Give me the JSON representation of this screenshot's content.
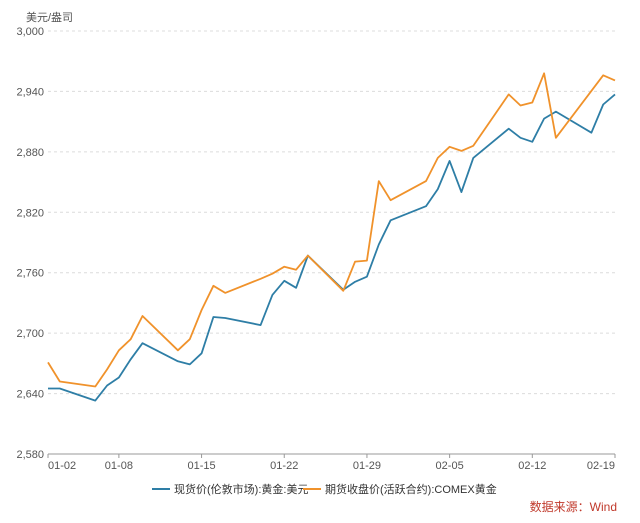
{
  "chart_data": {
    "type": "line",
    "y_unit": "美元/盎司",
    "ylim": [
      2580,
      3000
    ],
    "yticks": [
      "2,580",
      "2,640",
      "2,700",
      "2,760",
      "2,820",
      "2,880",
      "2,940",
      "3,000"
    ],
    "ytick_values": [
      2580,
      2640,
      2700,
      2760,
      2820,
      2880,
      2940,
      3000
    ],
    "xlim": [
      "2025-01-02",
      "2025-02-19"
    ],
    "xticks": [
      "01-02",
      "01-08",
      "01-15",
      "01-22",
      "01-29",
      "02-05",
      "02-12",
      "02-19"
    ],
    "xtick_dates": [
      "2025-01-02",
      "2025-01-08",
      "2025-01-15",
      "2025-01-22",
      "2025-01-29",
      "2025-02-05",
      "2025-02-12",
      "2025-02-19"
    ],
    "grid": "horizontal dashed",
    "legend_position": "bottom",
    "series": [
      {
        "name": "现货价(伦敦市场):黄金:美元",
        "color": "#2e7ea6",
        "points": [
          [
            "2025-01-02",
            2645
          ],
          [
            "2025-01-03",
            2645
          ],
          [
            "2025-01-06",
            2633
          ],
          [
            "2025-01-07",
            2648
          ],
          [
            "2025-01-08",
            2656
          ],
          [
            "2025-01-09",
            2674
          ],
          [
            "2025-01-10",
            2690
          ],
          [
            "2025-01-13",
            2672
          ],
          [
            "2025-01-14",
            2669
          ],
          [
            "2025-01-15",
            2680
          ],
          [
            "2025-01-16",
            2716
          ],
          [
            "2025-01-17",
            2715
          ],
          [
            "2025-01-20",
            2708
          ],
          [
            "2025-01-21",
            2738
          ],
          [
            "2025-01-22",
            2752
          ],
          [
            "2025-01-23",
            2745
          ],
          [
            "2025-01-24",
            2777
          ],
          [
            "2025-01-27",
            2743
          ],
          [
            "2025-01-28",
            2751
          ],
          [
            "2025-01-29",
            2756
          ],
          [
            "2025-01-30",
            2788
          ],
          [
            "2025-01-31",
            2812
          ],
          [
            "2025-02-03",
            2826
          ],
          [
            "2025-02-04",
            2843
          ],
          [
            "2025-02-05",
            2871
          ],
          [
            "2025-02-06",
            2840
          ],
          [
            "2025-02-07",
            2874
          ],
          [
            "2025-02-10",
            2903
          ],
          [
            "2025-02-11",
            2894
          ],
          [
            "2025-02-12",
            2890
          ],
          [
            "2025-02-13",
            2913
          ],
          [
            "2025-02-14",
            2920
          ],
          [
            "2025-02-17",
            2899
          ],
          [
            "2025-02-18",
            2927
          ],
          [
            "2025-02-19",
            2937
          ]
        ]
      },
      {
        "name": "期货收盘价(活跃合约):COMEX黄金",
        "color": "#f0922b",
        "points": [
          [
            "2025-01-02",
            2671
          ],
          [
            "2025-01-03",
            2652
          ],
          [
            "2025-01-06",
            2647
          ],
          [
            "2025-01-07",
            2664
          ],
          [
            "2025-01-08",
            2683
          ],
          [
            "2025-01-09",
            2694
          ],
          [
            "2025-01-10",
            2717
          ],
          [
            "2025-01-13",
            2683
          ],
          [
            "2025-01-14",
            2694
          ],
          [
            "2025-01-15",
            2723
          ],
          [
            "2025-01-16",
            2747
          ],
          [
            "2025-01-17",
            2740
          ],
          [
            "2025-01-20",
            2754
          ],
          [
            "2025-01-21",
            2759
          ],
          [
            "2025-01-22",
            2766
          ],
          [
            "2025-01-23",
            2763
          ],
          [
            "2025-01-24",
            2777
          ],
          [
            "2025-01-27",
            2742
          ],
          [
            "2025-01-28",
            2771
          ],
          [
            "2025-01-29",
            2772
          ],
          [
            "2025-01-30",
            2851
          ],
          [
            "2025-01-31",
            2832
          ],
          [
            "2025-02-03",
            2851
          ],
          [
            "2025-02-04",
            2874
          ],
          [
            "2025-02-05",
            2885
          ],
          [
            "2025-02-06",
            2881
          ],
          [
            "2025-02-07",
            2886
          ],
          [
            "2025-02-10",
            2937
          ],
          [
            "2025-02-11",
            2926
          ],
          [
            "2025-02-12",
            2929
          ],
          [
            "2025-02-13",
            2958
          ],
          [
            "2025-02-14",
            2894
          ],
          [
            "2025-02-18",
            2956
          ],
          [
            "2025-02-19",
            2951
          ]
        ]
      }
    ]
  },
  "source_note": "数据来源：Wind"
}
